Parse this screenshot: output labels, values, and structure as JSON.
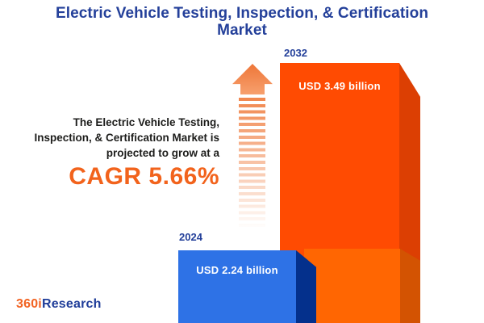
{
  "title": {
    "line1": "Electric Vehicle Testing, Inspection, & Certification",
    "line2": "Market",
    "full": "Electric Vehicle Testing, Inspection, & Certification Market"
  },
  "description": {
    "line1": "The Electric Vehicle Testing,",
    "line2": "Inspection, & Certification Market is",
    "line3": "projected to grow at a",
    "cagr": "CAGR 5.66%"
  },
  "bars": {
    "y2024": {
      "year": "2024",
      "value_label": "USD 2.24 billion"
    },
    "y2032": {
      "year": "2032",
      "value_label": "USD 3.49 billion"
    }
  },
  "logo": {
    "prefix": "360i",
    "suffix": "Research"
  },
  "chart_data": {
    "type": "bar",
    "title": "Electric Vehicle Testing, Inspection, & Certification Market",
    "categories": [
      "2024",
      "2032"
    ],
    "values": [
      2.24,
      3.49
    ],
    "unit": "USD billion",
    "data_labels": [
      "USD 2.24 billion",
      "USD 3.49 billion"
    ],
    "cagr_percent": 5.66,
    "annotations": [
      "The Electric Vehicle Testing, Inspection, & Certification Market is projected to grow at a",
      "CAGR 5.66%"
    ],
    "series_colors": {
      "2024": "#2E72E6",
      "2032": "#FF4B02"
    },
    "legend": "off",
    "grid": "off",
    "axes": "off",
    "style": "3d-infographic-bars"
  },
  "icons": {
    "growth_arrow": "upward-arrow-with-fading-dashed-trail"
  },
  "colors": {
    "title_blue": "#24409A",
    "bar_2024_front": "#2E72E6",
    "bar_2024_side": "#04308C",
    "bar_2032_front": "#FF4B02",
    "bar_2032_side": "#DC3F03",
    "bar_2032_base_front": "#FF6602",
    "bar_2032_base_side": "#D35302",
    "accent_orange": "#F2631C",
    "arrow_orange": "#F0814B",
    "text_dark": "#1D1D1B",
    "background": "#FFFFFF"
  }
}
